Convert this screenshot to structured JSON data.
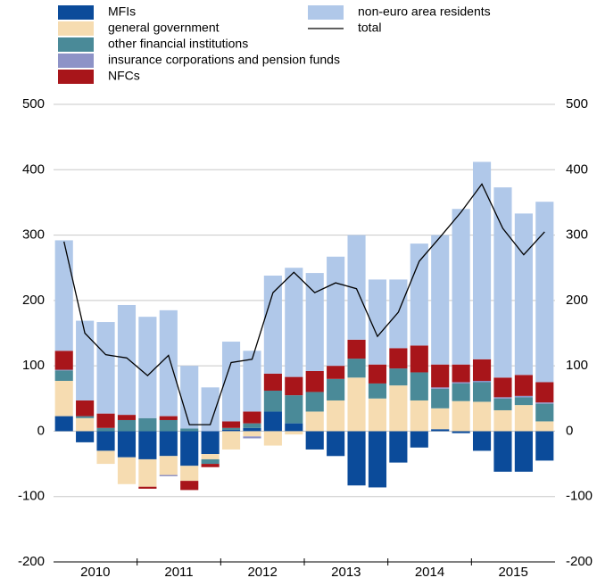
{
  "chart_data": {
    "type": "stacked-bar",
    "categories": [
      null,
      null,
      null,
      null,
      null,
      null,
      null,
      null,
      null,
      null,
      null,
      null,
      null,
      null,
      null,
      null,
      null,
      null,
      null,
      null,
      null,
      null,
      null,
      null
    ],
    "x_group_labels": [
      "2010",
      "2011",
      "2012",
      "2013",
      "2014",
      "2015"
    ],
    "series": [
      {
        "name": "MFIs",
        "color": "#0b4b9a",
        "values": [
          23,
          -17,
          -30,
          -40,
          -43,
          -38,
          -53,
          -35,
          2,
          5,
          30,
          12,
          -28,
          -38,
          -83,
          -86,
          -48,
          -25,
          3,
          -3,
          -30,
          -62,
          -62,
          -45
        ]
      },
      {
        "name": "general government",
        "color": "#f6dcb1",
        "values": [
          54,
          20,
          -20,
          -41,
          -42,
          -29,
          -23,
          -8,
          -28,
          -8,
          -22,
          -5,
          30,
          47,
          82,
          50,
          70,
          47,
          32,
          46,
          45,
          32,
          40,
          15
        ]
      },
      {
        "name": "other financial institutions",
        "color": "#4a8a98",
        "values": [
          16,
          3,
          5,
          17,
          20,
          17,
          4,
          -7,
          3,
          7,
          32,
          43,
          30,
          33,
          29,
          23,
          26,
          43,
          30,
          27,
          30,
          18,
          12,
          27
        ]
      },
      {
        "name": "insurance corporations and pension funds",
        "color": "#8e93c7",
        "values": [
          1,
          0,
          0,
          0,
          0,
          -2,
          0,
          0,
          0,
          -3,
          0,
          0,
          0,
          0,
          0,
          0,
          0,
          0,
          2,
          2,
          2,
          2,
          2,
          2
        ]
      },
      {
        "name": "NFCs",
        "color": "#a8151a",
        "values": [
          29,
          24,
          22,
          8,
          -3,
          6,
          -14,
          -5,
          10,
          18,
          26,
          28,
          32,
          20,
          29,
          29,
          31,
          41,
          35,
          27,
          33,
          30,
          32,
          31
        ]
      },
      {
        "name": "non-euro area residents",
        "color": "#b0c8e9",
        "values": [
          169,
          122,
          140,
          168,
          155,
          162,
          96,
          67,
          122,
          93,
          150,
          167,
          150,
          167,
          160,
          130,
          105,
          156,
          198,
          238,
          302,
          291,
          247,
          276
        ]
      }
    ],
    "total": {
      "name": "total",
      "color": "#000000",
      "values": [
        290,
        150,
        117,
        112,
        85,
        116,
        10,
        10,
        105,
        110,
        212,
        243,
        212,
        227,
        218,
        145,
        182,
        260,
        297,
        335,
        378,
        310,
        270,
        305
      ]
    },
    "ylim": [
      -200,
      500
    ],
    "yticks": [
      -200,
      -100,
      0,
      100,
      200,
      300,
      400,
      500
    ],
    "grid": true
  }
}
